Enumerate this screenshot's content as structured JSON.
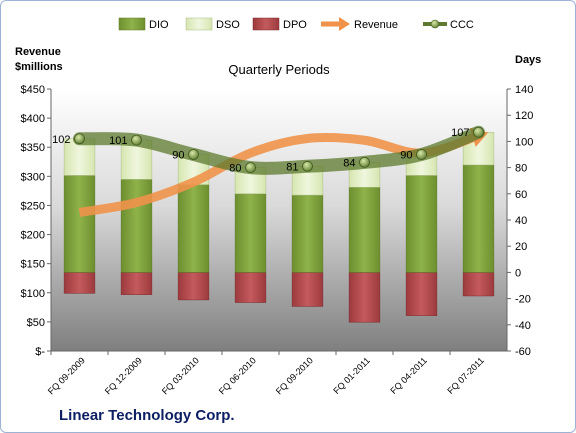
{
  "chart_data": {
    "type": "bar",
    "title": "Quarterly Periods",
    "company": "Linear Technology Corp.",
    "left_axis_label_line1": "Revenue",
    "left_axis_label_line2": "$millions",
    "right_axis_label": "Days",
    "categories": [
      "FQ 09-2009",
      "FQ 12-2009",
      "FQ 03-2010",
      "FQ 06-2010",
      "FQ 09-2010",
      "FQ 01-2011",
      "FQ 04-2011",
      "FQ 07-2011"
    ],
    "left_ticks": [
      "$-",
      "$50",
      "$100",
      "$150",
      "$200",
      "$250",
      "$300",
      "$350",
      "$400",
      "$450"
    ],
    "right_ticks": [
      "-60",
      "-40",
      "-20",
      "0",
      "20",
      "40",
      "60",
      "80",
      "100",
      "120",
      "140"
    ],
    "ylim_left": [
      0,
      450
    ],
    "ylim_right": [
      -60,
      140
    ],
    "series": [
      {
        "name": "DIO",
        "axis": "right",
        "color": "#7a9a3b",
        "values": [
          74,
          71,
          67,
          60,
          59,
          65,
          74,
          82
        ]
      },
      {
        "name": "DSO",
        "axis": "right",
        "color": "#e4efc9",
        "values": [
          28,
          30,
          23,
          20,
          22,
          19,
          16,
          25
        ]
      },
      {
        "name": "DPO",
        "axis": "right",
        "color": "#b5474a",
        "values": [
          -16,
          -17,
          -21,
          -23,
          -26,
          -38,
          -33,
          -18
        ]
      },
      {
        "name": "Revenue",
        "axis": "left",
        "color": "#f0924a",
        "values": [
          238,
          255,
          290,
          340,
          365,
          362,
          340,
          370
        ]
      },
      {
        "name": "CCC",
        "axis": "right",
        "color": "#5c7a2e",
        "values": [
          102,
          101,
          90,
          80,
          81,
          84,
          90,
          107
        ]
      }
    ],
    "data_labels": [
      "102",
      "101",
      "90",
      "80",
      "81",
      "84",
      "90",
      "107"
    ],
    "grid": false,
    "legend": "top"
  }
}
